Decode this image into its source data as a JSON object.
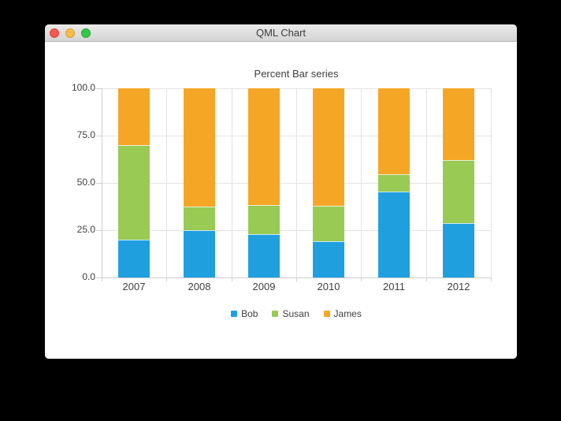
{
  "window": {
    "title": "QML Chart",
    "controls": [
      {
        "name": "close",
        "color": "#f25a52",
        "border": "#de443c"
      },
      {
        "name": "minimize",
        "color": "#f6bd4f",
        "border": "#dfa023"
      },
      {
        "name": "zoom",
        "color": "#35c649",
        "border": "#23ab38"
      }
    ]
  },
  "chart_data": {
    "type": "bar",
    "mode": "percent-stacked",
    "title": "Percent Bar series",
    "categories": [
      "2007",
      "2008",
      "2009",
      "2010",
      "2011",
      "2012"
    ],
    "series": [
      {
        "name": "Bob",
        "color": "#209fdf",
        "values": [
          2,
          2,
          3,
          4,
          5,
          6
        ]
      },
      {
        "name": "Susan",
        "color": "#99ca53",
        "values": [
          5,
          1,
          2,
          4,
          1,
          7
        ]
      },
      {
        "name": "James",
        "color": "#f6a625",
        "values": [
          3,
          5,
          8,
          13,
          5,
          8
        ]
      }
    ],
    "percent_by_category": {
      "2007": {
        "Bob": 20.0,
        "Susan": 50.0,
        "James": 30.0
      },
      "2008": {
        "Bob": 25.0,
        "Susan": 12.5,
        "James": 62.5
      },
      "2009": {
        "Bob": 23.1,
        "Susan": 15.4,
        "James": 61.5
      },
      "2010": {
        "Bob": 19.0,
        "Susan": 19.0,
        "James": 62.0
      },
      "2011": {
        "Bob": 45.5,
        "Susan": 9.1,
        "James": 45.5
      },
      "2012": {
        "Bob": 28.6,
        "Susan": 33.3,
        "James": 38.1
      }
    },
    "y_axis": {
      "min": 0,
      "max": 100,
      "tick_labels": [
        "100.0",
        "75.0",
        "50.0",
        "25.0",
        "0.0"
      ]
    },
    "grid": true,
    "legend": {
      "position": "bottom",
      "entries": [
        "Bob",
        "Susan",
        "James"
      ]
    }
  }
}
